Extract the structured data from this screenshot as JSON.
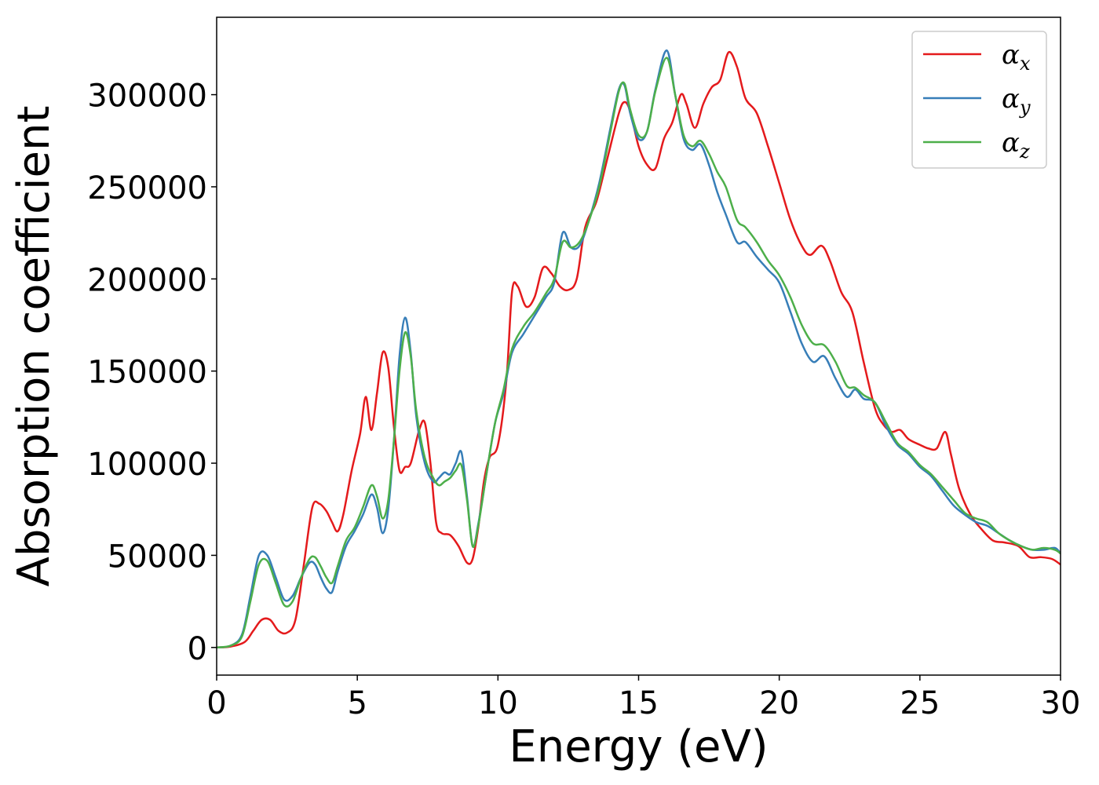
{
  "chart_data": {
    "type": "line",
    "xlabel": "Energy (eV)",
    "ylabel": "Absorption coefficient",
    "xlim": [
      0,
      30
    ],
    "ylim": [
      -15000,
      342000
    ],
    "xticks": [
      0,
      5,
      10,
      15,
      20,
      25,
      30
    ],
    "yticks": [
      0,
      50000,
      100000,
      150000,
      200000,
      250000,
      300000
    ],
    "grid": false,
    "legend_position": "top-right",
    "series": [
      {
        "name_main": "α",
        "name_sub": "x",
        "color": "#e41a1c",
        "x": [
          0,
          0.5,
          1.0,
          1.3,
          1.6,
          1.9,
          2.2,
          2.5,
          2.8,
          3.1,
          3.4,
          3.65,
          3.9,
          4.1,
          4.3,
          4.5,
          4.8,
          5.1,
          5.3,
          5.5,
          5.7,
          5.9,
          6.1,
          6.3,
          6.5,
          6.7,
          6.9,
          7.2,
          7.4,
          7.6,
          7.8,
          8.0,
          8.3,
          8.6,
          8.9,
          9.1,
          9.3,
          9.5,
          9.7,
          10.0,
          10.3,
          10.5,
          10.7,
          11.0,
          11.3,
          11.6,
          11.9,
          12.2,
          12.5,
          12.8,
          13.1,
          13.5,
          13.9,
          14.3,
          14.5,
          14.7,
          15.0,
          15.3,
          15.6,
          15.9,
          16.2,
          16.5,
          16.7,
          17.0,
          17.3,
          17.6,
          17.9,
          18.2,
          18.5,
          18.8,
          19.2,
          19.6,
          20.0,
          20.4,
          20.8,
          21.1,
          21.5,
          21.8,
          22.2,
          22.6,
          23.0,
          23.4,
          23.7,
          24.0,
          24.3,
          24.6,
          25.0,
          25.3,
          25.6,
          25.9,
          26.1,
          26.4,
          26.8,
          27.2,
          27.6,
          28.0,
          28.5,
          28.9,
          29.3,
          29.7,
          30.0
        ],
        "y": [
          0,
          500,
          3000,
          9000,
          15000,
          15000,
          9000,
          8000,
          15000,
          45000,
          76000,
          78000,
          74000,
          68000,
          63000,
          72000,
          96000,
          116000,
          136000,
          118000,
          138000,
          160000,
          152000,
          120000,
          96000,
          98000,
          100000,
          118000,
          122000,
          100000,
          68000,
          62000,
          61000,
          55000,
          46000,
          48000,
          65000,
          90000,
          103000,
          110000,
          145000,
          193000,
          196000,
          185000,
          190000,
          206000,
          203000,
          196000,
          194000,
          200000,
          228000,
          242000,
          266000,
          290000,
          296000,
          291000,
          272000,
          262000,
          260000,
          276000,
          285000,
          300000,
          295000,
          282000,
          295000,
          304000,
          308000,
          323000,
          315000,
          298000,
          290000,
          272000,
          252000,
          232000,
          218000,
          213000,
          218000,
          210000,
          193000,
          182000,
          155000,
          130000,
          121000,
          117000,
          118000,
          113000,
          110000,
          108000,
          108000,
          117000,
          105000,
          86000,
          72000,
          64000,
          58000,
          57000,
          55000,
          49000,
          49000,
          48000,
          45000
        ]
      },
      {
        "name_main": "α",
        "name_sub": "y",
        "color": "#377eb8",
        "x": [
          0,
          0.5,
          0.9,
          1.2,
          1.5,
          1.8,
          2.1,
          2.4,
          2.7,
          3.0,
          3.3,
          3.5,
          3.7,
          3.9,
          4.1,
          4.3,
          4.6,
          4.9,
          5.2,
          5.5,
          5.7,
          5.9,
          6.1,
          6.3,
          6.5,
          6.7,
          6.9,
          7.1,
          7.4,
          7.7,
          7.9,
          8.1,
          8.3,
          8.5,
          8.7,
          8.9,
          9.1,
          9.3,
          9.6,
          9.9,
          10.2,
          10.5,
          10.9,
          11.3,
          11.7,
          12.0,
          12.3,
          12.6,
          12.9,
          13.2,
          13.6,
          14.0,
          14.3,
          14.5,
          14.7,
          15.0,
          15.3,
          15.6,
          16.0,
          16.3,
          16.6,
          16.9,
          17.2,
          17.5,
          17.8,
          18.1,
          18.5,
          18.8,
          19.2,
          19.6,
          20.0,
          20.4,
          20.8,
          21.2,
          21.6,
          22.0,
          22.4,
          22.7,
          23.0,
          23.4,
          23.8,
          24.2,
          24.6,
          25.0,
          25.4,
          25.8,
          26.2,
          26.6,
          27.0,
          27.4,
          27.8,
          28.2,
          28.6,
          29.0,
          29.4,
          29.8,
          30.0
        ],
        "y": [
          0,
          1000,
          7000,
          28000,
          50000,
          50000,
          38000,
          26000,
          28000,
          38000,
          46000,
          45000,
          38000,
          32000,
          30000,
          41000,
          55000,
          63000,
          72000,
          83000,
          76000,
          62000,
          75000,
          112000,
          158000,
          179000,
          160000,
          125000,
          100000,
          90000,
          92000,
          95000,
          94000,
          100000,
          106000,
          82000,
          55000,
          67000,
          95000,
          122000,
          138000,
          160000,
          170000,
          180000,
          190000,
          198000,
          225000,
          217000,
          218000,
          230000,
          252000,
          282000,
          303000,
          305000,
          290000,
          276000,
          280000,
          303000,
          324000,
          300000,
          276000,
          270000,
          273000,
          262000,
          247000,
          235000,
          220000,
          220000,
          212000,
          205000,
          198000,
          182000,
          165000,
          155000,
          158000,
          146000,
          136000,
          140000,
          135000,
          133000,
          120000,
          110000,
          105000,
          98000,
          93000,
          85000,
          77000,
          72000,
          68000,
          66000,
          62000,
          58000,
          55000,
          53000,
          53000,
          54000,
          51000
        ]
      },
      {
        "name_main": "α",
        "name_sub": "z",
        "color": "#4daf4a",
        "x": [
          0,
          0.5,
          0.9,
          1.2,
          1.5,
          1.8,
          2.1,
          2.4,
          2.7,
          3.0,
          3.3,
          3.5,
          3.7,
          3.9,
          4.1,
          4.3,
          4.6,
          4.9,
          5.2,
          5.5,
          5.7,
          5.9,
          6.1,
          6.3,
          6.5,
          6.7,
          6.9,
          7.1,
          7.4,
          7.7,
          7.9,
          8.1,
          8.3,
          8.5,
          8.7,
          8.9,
          9.1,
          9.3,
          9.6,
          9.9,
          10.2,
          10.5,
          10.9,
          11.3,
          11.7,
          12.0,
          12.3,
          12.6,
          12.9,
          13.2,
          13.6,
          14.0,
          14.3,
          14.5,
          14.7,
          15.0,
          15.3,
          15.6,
          16.0,
          16.3,
          16.6,
          16.9,
          17.2,
          17.5,
          17.8,
          18.1,
          18.5,
          18.8,
          19.2,
          19.6,
          20.0,
          20.4,
          20.8,
          21.2,
          21.6,
          22.0,
          22.4,
          22.7,
          23.0,
          23.4,
          23.8,
          24.2,
          24.6,
          25.0,
          25.4,
          25.8,
          26.2,
          26.6,
          27.0,
          27.4,
          27.8,
          28.2,
          28.6,
          29.0,
          29.4,
          29.8,
          30.0
        ],
        "y": [
          0,
          1000,
          6000,
          25000,
          45000,
          47000,
          35000,
          23000,
          25000,
          38000,
          48000,
          49000,
          44000,
          38000,
          35000,
          44000,
          58000,
          65000,
          76000,
          88000,
          82000,
          70000,
          80000,
          112000,
          150000,
          171000,
          158000,
          128000,
          103000,
          92000,
          88000,
          90000,
          92000,
          96000,
          99000,
          80000,
          55000,
          66000,
          95000,
          122000,
          140000,
          162000,
          174000,
          182000,
          192000,
          200000,
          220000,
          217000,
          220000,
          230000,
          250000,
          280000,
          302000,
          306000,
          292000,
          278000,
          280000,
          302000,
          320000,
          300000,
          278000,
          272000,
          275000,
          268000,
          258000,
          250000,
          232000,
          228000,
          220000,
          210000,
          202000,
          190000,
          175000,
          165000,
          164000,
          155000,
          142000,
          141000,
          137000,
          133000,
          122000,
          111000,
          106000,
          99000,
          94000,
          87000,
          80000,
          73000,
          70000,
          68000,
          62000,
          58000,
          55000,
          53000,
          54000,
          53000,
          51000
        ]
      }
    ]
  }
}
